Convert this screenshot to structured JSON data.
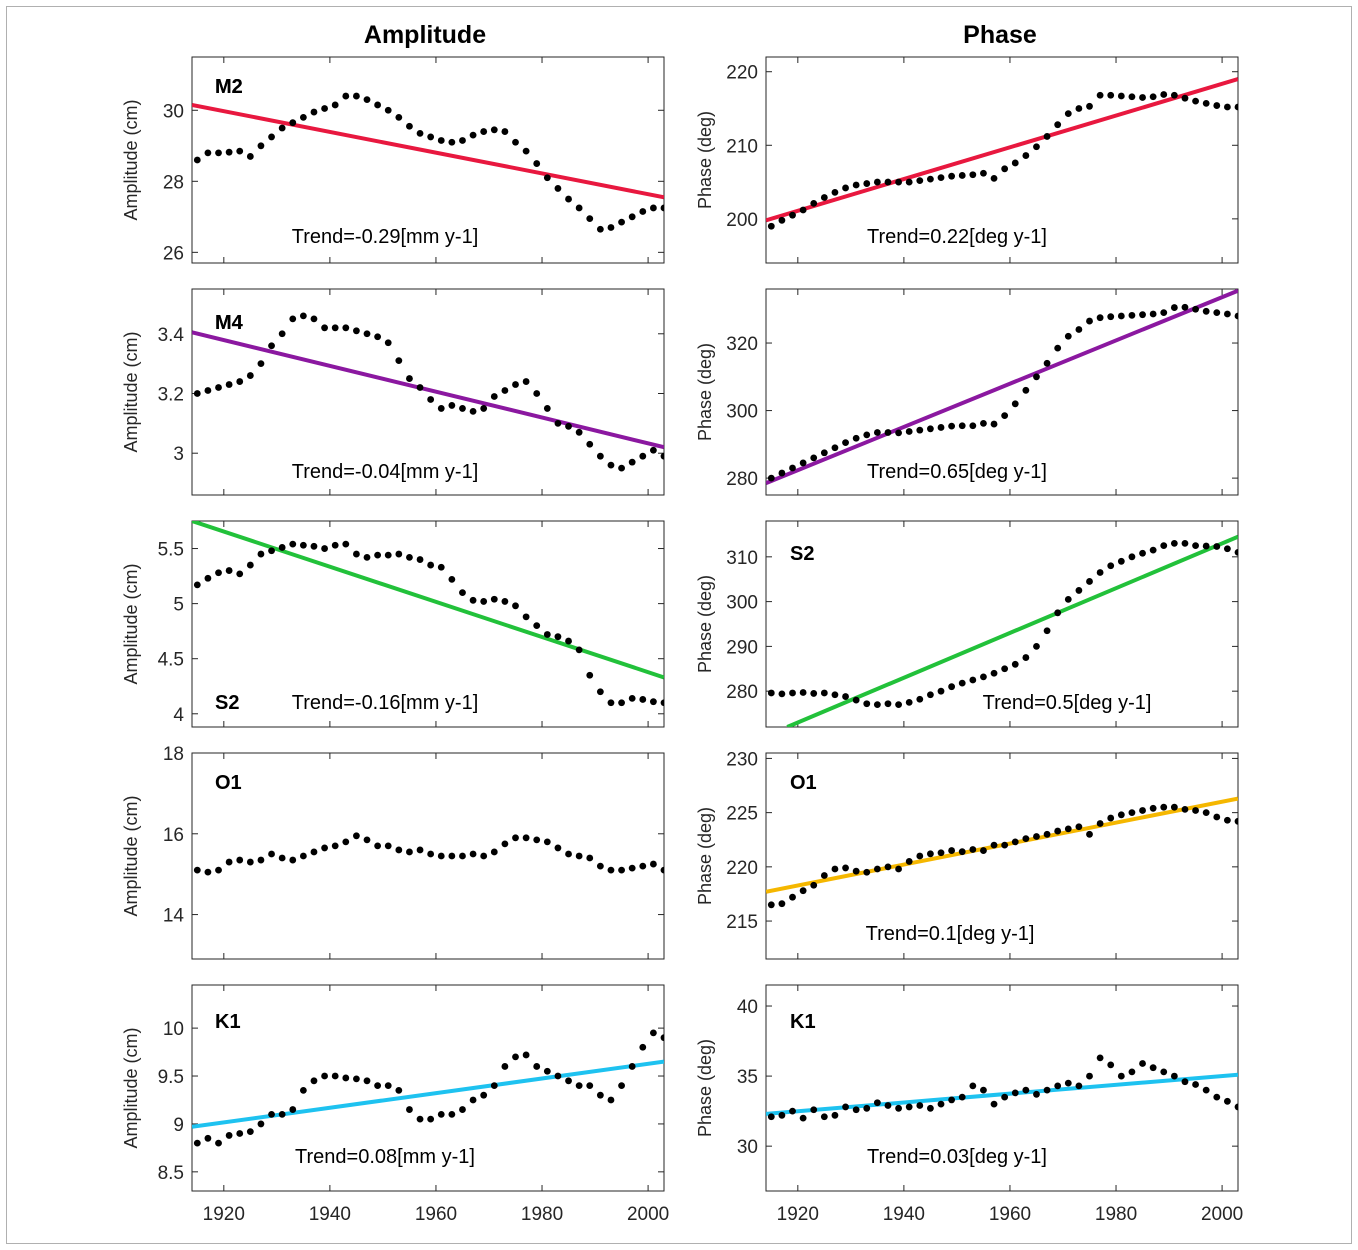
{
  "column_titles": [
    "Amplitude",
    "Phase"
  ],
  "chart_data": [
    {
      "type": "scatter",
      "label": "M2",
      "ylabel": "Amplitude (cm)",
      "trend_text": "Trend=-0.29[mm y-1]",
      "xlim": [
        1914,
        2003
      ],
      "ylim": [
        25.7,
        31.5
      ],
      "yticks": [
        26,
        28,
        30
      ],
      "xticks": [
        1920,
        1940,
        1960,
        1980,
        2000
      ],
      "fit_color": "#e8183f",
      "fit_x": [
        1914,
        2003
      ],
      "fit_y": [
        30.15,
        27.55
      ],
      "x": [
        1915,
        1917,
        1919,
        1921,
        1923,
        1925,
        1927,
        1929,
        1931,
        1933,
        1935,
        1937,
        1939,
        1941,
        1943,
        1945,
        1947,
        1949,
        1951,
        1953,
        1955,
        1957,
        1959,
        1961,
        1963,
        1965,
        1967,
        1969,
        1971,
        1973,
        1975,
        1977,
        1979,
        1981,
        1983,
        1985,
        1987,
        1989,
        1991,
        1993,
        1995,
        1997,
        1999,
        2001,
        2003
      ],
      "y": [
        28.6,
        28.8,
        28.8,
        28.82,
        28.85,
        28.7,
        29.0,
        29.25,
        29.5,
        29.65,
        29.8,
        29.95,
        30.05,
        30.15,
        30.4,
        30.4,
        30.3,
        30.15,
        30.0,
        29.8,
        29.55,
        29.35,
        29.25,
        29.15,
        29.1,
        29.15,
        29.3,
        29.4,
        29.45,
        29.4,
        29.1,
        28.85,
        28.5,
        28.1,
        27.8,
        27.5,
        27.25,
        26.95,
        26.65,
        26.7,
        26.85,
        27.0,
        27.15,
        27.25,
        27.25
      ]
    },
    {
      "type": "scatter",
      "label": "M2",
      "ylabel": "Phase (deg)",
      "trend_text": "Trend=0.22[deg y-1]",
      "xlim": [
        1914,
        2003
      ],
      "ylim": [
        194,
        222
      ],
      "yticks": [
        200,
        210,
        220
      ],
      "xticks": [
        1920,
        1940,
        1960,
        1980,
        2000
      ],
      "fit_color": "#e8183f",
      "fit_x": [
        1914,
        2003
      ],
      "fit_y": [
        199.8,
        219.0
      ],
      "x": [
        1915,
        1917,
        1919,
        1921,
        1923,
        1925,
        1927,
        1929,
        1931,
        1933,
        1935,
        1937,
        1939,
        1941,
        1943,
        1945,
        1947,
        1949,
        1951,
        1953,
        1955,
        1957,
        1959,
        1961,
        1963,
        1965,
        1967,
        1969,
        1971,
        1973,
        1975,
        1977,
        1979,
        1981,
        1983,
        1985,
        1987,
        1989,
        1991,
        1993,
        1995,
        1997,
        1999,
        2001,
        2003
      ],
      "y": [
        199.0,
        199.8,
        200.5,
        201.2,
        202.1,
        202.9,
        203.6,
        204.2,
        204.6,
        204.8,
        205.0,
        205.0,
        205.0,
        205.0,
        205.2,
        205.4,
        205.6,
        205.8,
        205.9,
        206.0,
        206.2,
        205.5,
        206.8,
        207.6,
        208.6,
        209.8,
        211.2,
        212.8,
        214.3,
        215.0,
        215.3,
        216.8,
        216.8,
        216.7,
        216.6,
        216.5,
        216.6,
        216.9,
        216.8,
        216.4,
        216.0,
        215.7,
        215.4,
        215.2,
        215.2
      ]
    },
    {
      "type": "scatter",
      "label": "M4",
      "ylabel": "Amplitude (cm)",
      "trend_text": "Trend=-0.04[mm y-1]",
      "xlim": [
        1914,
        2003
      ],
      "ylim": [
        2.86,
        3.55
      ],
      "yticks": [
        3,
        3.2,
        3.4
      ],
      "xticks": [
        1920,
        1940,
        1960,
        1980,
        2000
      ],
      "fit_color": "#8b18a0",
      "fit_x": [
        1914,
        2003
      ],
      "fit_y": [
        3.405,
        3.02
      ],
      "x": [
        1915,
        1917,
        1919,
        1921,
        1923,
        1925,
        1927,
        1929,
        1931,
        1933,
        1935,
        1937,
        1939,
        1941,
        1943,
        1945,
        1947,
        1949,
        1951,
        1953,
        1955,
        1957,
        1959,
        1961,
        1963,
        1965,
        1967,
        1969,
        1971,
        1973,
        1975,
        1977,
        1979,
        1981,
        1983,
        1985,
        1987,
        1989,
        1991,
        1993,
        1995,
        1997,
        1999,
        2001,
        2003
      ],
      "y": [
        3.2,
        3.21,
        3.22,
        3.23,
        3.24,
        3.26,
        3.3,
        3.36,
        3.4,
        3.45,
        3.46,
        3.45,
        3.42,
        3.42,
        3.42,
        3.41,
        3.4,
        3.39,
        3.37,
        3.31,
        3.25,
        3.22,
        3.18,
        3.15,
        3.16,
        3.15,
        3.14,
        3.15,
        3.19,
        3.21,
        3.23,
        3.24,
        3.2,
        3.15,
        3.1,
        3.09,
        3.07,
        3.03,
        2.99,
        2.96,
        2.95,
        2.97,
        2.99,
        3.01,
        2.99
      ]
    },
    {
      "type": "scatter",
      "label": "M4",
      "ylabel": "Phase (deg)",
      "trend_text": "Trend=0.65[deg y-1]",
      "xlim": [
        1914,
        2003
      ],
      "ylim": [
        275,
        336
      ],
      "yticks": [
        280,
        300,
        320
      ],
      "xticks": [
        1920,
        1940,
        1960,
        1980,
        2000
      ],
      "fit_color": "#8b18a0",
      "fit_x": [
        1914,
        2003
      ],
      "fit_y": [
        278.5,
        335.5
      ],
      "x": [
        1915,
        1917,
        1919,
        1921,
        1923,
        1925,
        1927,
        1929,
        1931,
        1933,
        1935,
        1937,
        1939,
        1941,
        1943,
        1945,
        1947,
        1949,
        1951,
        1953,
        1955,
        1957,
        1959,
        1961,
        1963,
        1965,
        1967,
        1969,
        1971,
        1973,
        1975,
        1977,
        1979,
        1981,
        1983,
        1985,
        1987,
        1989,
        1991,
        1993,
        1995,
        1997,
        1999,
        2001,
        2003
      ],
      "y": [
        280,
        281.5,
        283,
        284.5,
        286,
        287.5,
        289,
        290.5,
        291.8,
        292.8,
        293.5,
        293.5,
        293.4,
        293.8,
        294.2,
        294.6,
        295.0,
        295.4,
        295.5,
        295.5,
        296.2,
        296.0,
        298.5,
        302,
        306,
        310,
        314,
        318.5,
        322,
        324,
        326.5,
        327.5,
        327.8,
        328.0,
        328.2,
        328.4,
        328.6,
        329.0,
        330.5,
        330.6,
        330.0,
        329.4,
        329.0,
        328.6,
        328.0
      ]
    },
    {
      "type": "scatter",
      "label": "S2",
      "ylabel": "Amplitude (cm)",
      "trend_text": "Trend=-0.16[mm y-1]",
      "xlim": [
        1914,
        2003
      ],
      "ylim": [
        3.88,
        5.75
      ],
      "yticks": [
        4,
        4.5,
        5,
        5.5
      ],
      "xticks": [
        1920,
        1940,
        1960,
        1980,
        2000
      ],
      "fit_color": "#22c13a",
      "fit_x": [
        1914,
        2003
      ],
      "fit_y": [
        5.75,
        4.33
      ],
      "x": [
        1915,
        1917,
        1919,
        1921,
        1923,
        1925,
        1927,
        1929,
        1931,
        1933,
        1935,
        1937,
        1939,
        1941,
        1943,
        1945,
        1947,
        1949,
        1951,
        1953,
        1955,
        1957,
        1959,
        1961,
        1963,
        1965,
        1967,
        1969,
        1971,
        1973,
        1975,
        1977,
        1979,
        1981,
        1983,
        1985,
        1987,
        1989,
        1991,
        1993,
        1995,
        1997,
        1999,
        2001,
        2003
      ],
      "y": [
        5.17,
        5.23,
        5.28,
        5.3,
        5.27,
        5.35,
        5.45,
        5.48,
        5.51,
        5.54,
        5.53,
        5.52,
        5.5,
        5.53,
        5.54,
        5.45,
        5.42,
        5.44,
        5.44,
        5.45,
        5.42,
        5.4,
        5.35,
        5.33,
        5.22,
        5.1,
        5.03,
        5.02,
        5.04,
        5.02,
        4.98,
        4.88,
        4.8,
        4.72,
        4.7,
        4.66,
        4.58,
        4.35,
        4.2,
        4.1,
        4.1,
        4.14,
        4.13,
        4.11,
        4.1
      ]
    },
    {
      "type": "scatter",
      "label": "S2",
      "ylabel": "Phase (deg)",
      "trend_text": "Trend=0.5[deg y-1]",
      "xlim": [
        1914,
        2003
      ],
      "ylim": [
        272,
        318
      ],
      "yticks": [
        280,
        290,
        300,
        310
      ],
      "xticks": [
        1920,
        1940,
        1960,
        1980,
        2000
      ],
      "fit_color": "#22c13a",
      "fit_x": [
        1918,
        2003
      ],
      "fit_y": [
        272,
        314.5
      ],
      "x": [
        1915,
        1917,
        1919,
        1921,
        1923,
        1925,
        1927,
        1929,
        1931,
        1933,
        1935,
        1937,
        1939,
        1941,
        1943,
        1945,
        1947,
        1949,
        1951,
        1953,
        1955,
        1957,
        1959,
        1961,
        1963,
        1965,
        1967,
        1969,
        1971,
        1973,
        1975,
        1977,
        1979,
        1981,
        1983,
        1985,
        1987,
        1989,
        1991,
        1993,
        1995,
        1997,
        1999,
        2001,
        2003
      ],
      "y": [
        279.6,
        279.4,
        279.6,
        279.7,
        279.5,
        279.6,
        279.2,
        278.8,
        278.0,
        277.2,
        277.0,
        277.2,
        277.0,
        277.5,
        278.2,
        279.2,
        280.0,
        281.0,
        281.8,
        282.5,
        283.2,
        284.0,
        285.0,
        286.0,
        287.5,
        290.0,
        293.5,
        297.5,
        300.5,
        302.5,
        304.5,
        306.5,
        308.0,
        309.0,
        310.0,
        310.8,
        311.5,
        312.5,
        313.0,
        313.0,
        312.5,
        312.4,
        312.3,
        311.8,
        311.0
      ]
    },
    {
      "type": "scatter",
      "label": "O1",
      "ylabel": "Amplitude (cm)",
      "trend_text": "",
      "xlim": [
        1914,
        2003
      ],
      "ylim": [
        12.9,
        18.0
      ],
      "yticks": [
        14,
        16,
        18
      ],
      "xticks": [
        1920,
        1940,
        1960,
        1980,
        2000
      ],
      "fit_color": "",
      "fit_x": [],
      "fit_y": [],
      "x": [
        1915,
        1917,
        1919,
        1921,
        1923,
        1925,
        1927,
        1929,
        1931,
        1933,
        1935,
        1937,
        1939,
        1941,
        1943,
        1945,
        1947,
        1949,
        1951,
        1953,
        1955,
        1957,
        1959,
        1961,
        1963,
        1965,
        1967,
        1969,
        1971,
        1973,
        1975,
        1977,
        1979,
        1981,
        1983,
        1985,
        1987,
        1989,
        1991,
        1993,
        1995,
        1997,
        1999,
        2001,
        2003
      ],
      "y": [
        15.1,
        15.05,
        15.1,
        15.3,
        15.35,
        15.3,
        15.35,
        15.5,
        15.4,
        15.35,
        15.45,
        15.55,
        15.65,
        15.7,
        15.8,
        15.95,
        15.85,
        15.7,
        15.7,
        15.6,
        15.55,
        15.6,
        15.5,
        15.45,
        15.45,
        15.45,
        15.5,
        15.45,
        15.55,
        15.75,
        15.9,
        15.9,
        15.85,
        15.8,
        15.65,
        15.5,
        15.45,
        15.4,
        15.2,
        15.1,
        15.1,
        15.15,
        15.2,
        15.25,
        15.1
      ]
    },
    {
      "type": "scatter",
      "label": "O1",
      "ylabel": "Phase (deg)",
      "trend_text": "Trend=0.1[deg y-1]",
      "xlim": [
        1914,
        2003
      ],
      "ylim": [
        211.5,
        230.5
      ],
      "yticks": [
        215,
        220,
        225,
        230
      ],
      "xticks": [
        1920,
        1940,
        1960,
        1980,
        2000
      ],
      "fit_color": "#f5b700",
      "fit_x": [
        1914,
        2003
      ],
      "fit_y": [
        217.7,
        226.3
      ],
      "x": [
        1915,
        1917,
        1919,
        1921,
        1923,
        1925,
        1927,
        1929,
        1931,
        1933,
        1935,
        1937,
        1939,
        1941,
        1943,
        1945,
        1947,
        1949,
        1951,
        1953,
        1955,
        1957,
        1959,
        1961,
        1963,
        1965,
        1967,
        1969,
        1971,
        1973,
        1975,
        1977,
        1979,
        1981,
        1983,
        1985,
        1987,
        1989,
        1991,
        1993,
        1995,
        1997,
        1999,
        2001,
        2003
      ],
      "y": [
        216.5,
        216.6,
        217.2,
        217.8,
        218.3,
        219.2,
        219.8,
        219.9,
        219.6,
        219.5,
        219.8,
        220.0,
        219.8,
        220.5,
        221.0,
        221.2,
        221.3,
        221.5,
        221.4,
        221.6,
        221.5,
        222.0,
        222.0,
        222.3,
        222.6,
        222.8,
        223.0,
        223.3,
        223.5,
        223.7,
        223.0,
        224.0,
        224.5,
        224.8,
        225.0,
        225.2,
        225.4,
        225.5,
        225.5,
        225.3,
        225.2,
        225.0,
        224.6,
        224.3,
        224.2
      ]
    },
    {
      "type": "scatter",
      "label": "K1",
      "ylabel": "Amplitude (cm)",
      "trend_text": "Trend=0.08[mm y-1]",
      "xlim": [
        1914,
        2003
      ],
      "ylim": [
        8.3,
        10.45
      ],
      "yticks": [
        8.5,
        9,
        9.5,
        10
      ],
      "xticks": [
        1920,
        1940,
        1960,
        1980,
        2000
      ],
      "fit_color": "#1ec2f0",
      "fit_x": [
        1914,
        2003
      ],
      "fit_y": [
        8.97,
        9.65
      ],
      "x": [
        1915,
        1917,
        1919,
        1921,
        1923,
        1925,
        1927,
        1929,
        1931,
        1933,
        1935,
        1937,
        1939,
        1941,
        1943,
        1945,
        1947,
        1949,
        1951,
        1953,
        1955,
        1957,
        1959,
        1961,
        1963,
        1965,
        1967,
        1969,
        1971,
        1973,
        1975,
        1977,
        1979,
        1981,
        1983,
        1985,
        1987,
        1989,
        1991,
        1993,
        1995,
        1997,
        1999,
        2001,
        2003
      ],
      "y": [
        8.8,
        8.85,
        8.8,
        8.88,
        8.9,
        8.92,
        9.0,
        9.1,
        9.1,
        9.15,
        9.35,
        9.45,
        9.5,
        9.5,
        9.48,
        9.47,
        9.45,
        9.4,
        9.4,
        9.35,
        9.15,
        9.05,
        9.05,
        9.1,
        9.1,
        9.15,
        9.25,
        9.3,
        9.4,
        9.6,
        9.7,
        9.72,
        9.6,
        9.55,
        9.5,
        9.45,
        9.4,
        9.4,
        9.3,
        9.25,
        9.4,
        9.6,
        9.8,
        9.95,
        9.9
      ]
    },
    {
      "type": "scatter",
      "label": "K1",
      "ylabel": "Phase (deg)",
      "trend_text": "Trend=0.03[deg y-1]",
      "xlim": [
        1914,
        2003
      ],
      "ylim": [
        26.8,
        41.5
      ],
      "yticks": [
        30,
        35,
        40
      ],
      "xticks": [
        1920,
        1940,
        1960,
        1980,
        2000
      ],
      "fit_color": "#1ec2f0",
      "fit_x": [
        1914,
        2003
      ],
      "fit_y": [
        32.3,
        35.1
      ],
      "x": [
        1915,
        1917,
        1919,
        1921,
        1923,
        1925,
        1927,
        1929,
        1931,
        1933,
        1935,
        1937,
        1939,
        1941,
        1943,
        1945,
        1947,
        1949,
        1951,
        1953,
        1955,
        1957,
        1959,
        1961,
        1963,
        1965,
        1967,
        1969,
        1971,
        1973,
        1975,
        1977,
        1979,
        1981,
        1983,
        1985,
        1987,
        1989,
        1991,
        1993,
        1995,
        1997,
        1999,
        2001,
        2003
      ],
      "y": [
        32.1,
        32.2,
        32.5,
        32.0,
        32.6,
        32.1,
        32.2,
        32.8,
        32.6,
        32.7,
        33.1,
        32.9,
        32.7,
        32.8,
        32.9,
        32.7,
        33.0,
        33.3,
        33.5,
        34.3,
        34.0,
        33.0,
        33.5,
        33.8,
        34.0,
        33.7,
        34.0,
        34.3,
        34.5,
        34.3,
        35.0,
        36.3,
        35.8,
        35.0,
        35.3,
        35.9,
        35.6,
        35.3,
        35.0,
        34.6,
        34.4,
        34.0,
        33.5,
        33.2,
        32.8
      ]
    }
  ]
}
